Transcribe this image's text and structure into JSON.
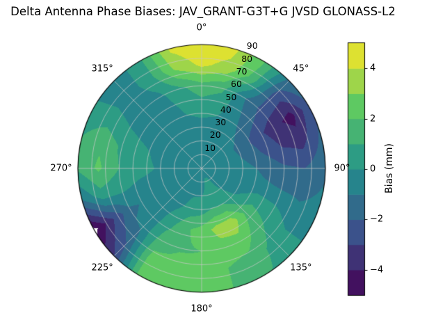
{
  "chart_data": {
    "type": "heatmap",
    "projection": "polar",
    "title": "Delta Antenna Phase Biases: JAV_GRANT-G3T+G JVSD GLONASS-L2",
    "theta_zero": "top",
    "theta_direction": "clockwise",
    "theta_ticks": [
      {
        "deg": 0,
        "label": "0°"
      },
      {
        "deg": 45,
        "label": "45°"
      },
      {
        "deg": 90,
        "label": "90°"
      },
      {
        "deg": 135,
        "label": "135°"
      },
      {
        "deg": 180,
        "label": "180°"
      },
      {
        "deg": 225,
        "label": "225°"
      },
      {
        "deg": 270,
        "label": "270°"
      },
      {
        "deg": 315,
        "label": "315°"
      }
    ],
    "radial_ticks": {
      "values": [
        10,
        20,
        30,
        40,
        50,
        60,
        70,
        80,
        90
      ],
      "labels": [
        "10",
        "20",
        "30",
        "40",
        "50",
        "60",
        "70",
        "80",
        "90"
      ],
      "label_azimuth_deg": 22.5
    },
    "colorbar": {
      "label": "Bias (mm)",
      "range": [
        -5,
        5
      ],
      "level_step": 1,
      "ticks": [
        -4,
        -2,
        0,
        2,
        4
      ],
      "tick_labels": [
        "−4",
        "−2",
        "0",
        "2",
        "4"
      ],
      "under_color": "#ffffff"
    },
    "colormap": {
      "name": "viridis",
      "stops": [
        [
          0.0,
          "#440154"
        ],
        [
          0.25,
          "#3b528b"
        ],
        [
          0.5,
          "#21918c"
        ],
        [
          0.75,
          "#5ec962"
        ],
        [
          1.0,
          "#fde725"
        ]
      ]
    },
    "grid": {
      "azimuth_deg": [
        0,
        15,
        30,
        45,
        60,
        75,
        90,
        105,
        120,
        135,
        150,
        165,
        180,
        195,
        210,
        225,
        240,
        255,
        270,
        285,
        300,
        315,
        330,
        345
      ],
      "radius_deg": [
        0,
        15,
        30,
        45,
        60,
        75,
        90
      ],
      "bias_mm": [
        [
          -0.3,
          -0.3,
          -0.3,
          -0.3,
          -0.3,
          -0.3,
          -0.3,
          -0.3,
          -0.3,
          -0.3,
          -0.3,
          -0.3,
          -0.3,
          -0.3,
          -0.3,
          -0.3,
          -0.3,
          -0.3,
          -0.3,
          -0.3,
          -0.3,
          -0.3,
          -0.3,
          -0.3
        ],
        [
          -0.3,
          -0.3,
          -0.3,
          -0.3,
          -0.3,
          -0.3,
          -0.3,
          -0.3,
          -0.3,
          -0.3,
          0.3,
          0.3,
          -0.3,
          -0.3,
          -0.3,
          -0.3,
          -0.3,
          -0.3,
          -0.3,
          -0.3,
          -0.3,
          -0.3,
          -0.3,
          -0.3
        ],
        [
          -0.4,
          -0.4,
          -0.4,
          -0.8,
          -1.2,
          -1.0,
          -0.6,
          -0.4,
          -0.4,
          0.3,
          1.0,
          1.0,
          0.5,
          0.4,
          -0.2,
          -0.4,
          -0.4,
          -0.4,
          -0.2,
          -0.4,
          -0.4,
          -0.4,
          -0.4,
          -0.4
        ],
        [
          0.5,
          0.3,
          -0.5,
          -1.5,
          -2.5,
          -2.0,
          -1.2,
          -0.8,
          0.5,
          1.8,
          3.6,
          3.4,
          2.4,
          1.8,
          0.6,
          -0.6,
          -0.8,
          -0.3,
          0.5,
          0.3,
          -0.3,
          -0.6,
          -0.5,
          0.2
        ],
        [
          1.6,
          1.2,
          -0.8,
          -2.2,
          -3.6,
          -3.0,
          -1.8,
          -1.0,
          0.3,
          1.2,
          2.6,
          2.6,
          2.0,
          1.9,
          1.4,
          -0.8,
          -1.2,
          0.2,
          1.0,
          0.8,
          0.0,
          -0.6,
          -0.2,
          0.8
        ],
        [
          4.2,
          3.6,
          1.6,
          -2.4,
          -4.4,
          -3.4,
          -2.0,
          -1.2,
          -0.4,
          0.6,
          1.6,
          2.0,
          2.2,
          2.4,
          2.4,
          -1.8,
          -3.2,
          0.6,
          2.2,
          1.8,
          0.4,
          -0.6,
          0.6,
          3.2
        ],
        [
          5.0,
          4.4,
          2.2,
          -1.2,
          -2.2,
          -1.8,
          -1.2,
          -0.8,
          -0.4,
          0.6,
          1.2,
          2.0,
          2.4,
          2.6,
          2.6,
          -3.0,
          -5.4,
          -1.0,
          1.2,
          1.0,
          0.2,
          -0.8,
          0.8,
          4.2
        ]
      ]
    }
  }
}
